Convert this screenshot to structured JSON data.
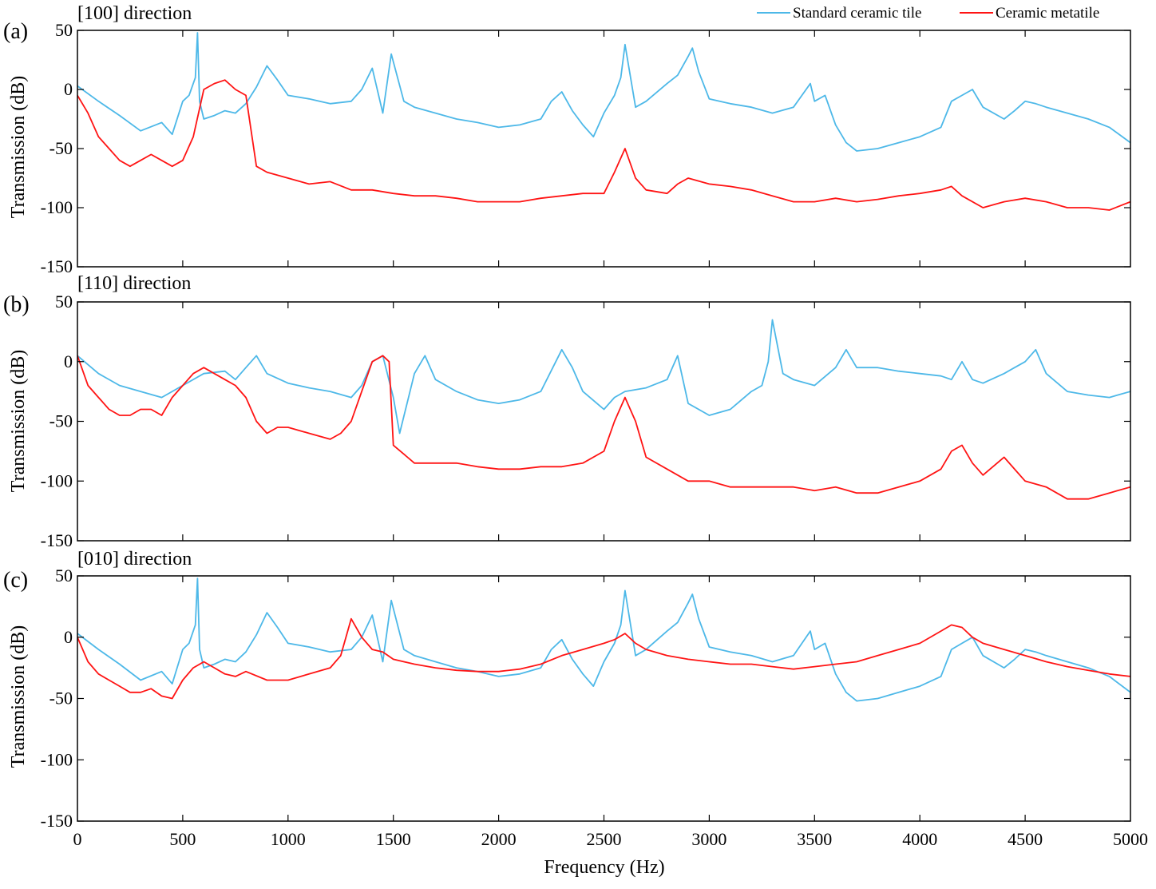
{
  "chart_data": [
    {
      "type": "line",
      "panel": "(a)",
      "title": "[100]  direction",
      "xlabel": "",
      "ylabel": "Transmission (dB)",
      "xlim": [
        0,
        5000
      ],
      "ylim": [
        -150,
        50
      ],
      "yticks": [
        "50",
        "0",
        "-50",
        "-100",
        "-150"
      ],
      "xticks": [],
      "series": [
        {
          "name": "Standard ceramic tile",
          "color": "#4db8e8",
          "x": [
            0,
            100,
            200,
            300,
            400,
            450,
            500,
            530,
            560,
            570,
            580,
            600,
            650,
            700,
            750,
            800,
            850,
            900,
            950,
            1000,
            1100,
            1200,
            1300,
            1350,
            1400,
            1450,
            1490,
            1550,
            1600,
            1700,
            1800,
            1900,
            2000,
            2100,
            2200,
            2250,
            2300,
            2350,
            2400,
            2450,
            2500,
            2550,
            2580,
            2600,
            2650,
            2700,
            2800,
            2850,
            2900,
            2920,
            2950,
            3000,
            3100,
            3200,
            3300,
            3400,
            3480,
            3500,
            3550,
            3600,
            3650,
            3700,
            3800,
            3900,
            4000,
            4100,
            4150,
            4200,
            4250,
            4300,
            4400,
            4450,
            4500,
            4550,
            4600,
            4700,
            4800,
            4900,
            5000
          ],
          "y": [
            3,
            -10,
            -22,
            -35,
            -28,
            -38,
            -10,
            -5,
            10,
            48,
            -10,
            -25,
            -22,
            -18,
            -20,
            -12,
            2,
            20,
            8,
            -5,
            -8,
            -12,
            -10,
            0,
            18,
            -20,
            30,
            -10,
            -15,
            -20,
            -25,
            -28,
            -32,
            -30,
            -25,
            -10,
            -2,
            -18,
            -30,
            -40,
            -20,
            -5,
            10,
            38,
            -15,
            -10,
            5,
            12,
            28,
            35,
            15,
            -8,
            -12,
            -15,
            -20,
            -15,
            5,
            -10,
            -5,
            -30,
            -45,
            -52,
            -50,
            -45,
            -40,
            -32,
            -10,
            -5,
            0,
            -15,
            -25,
            -18,
            -10,
            -12,
            -15,
            -20,
            -25,
            -32,
            -45
          ]
        },
        {
          "name": "Ceramic metatile",
          "color": "#ff1414",
          "x": [
            0,
            50,
            100,
            150,
            200,
            250,
            300,
            350,
            400,
            450,
            500,
            550,
            600,
            650,
            700,
            750,
            800,
            850,
            900,
            1000,
            1100,
            1200,
            1300,
            1400,
            1500,
            1600,
            1700,
            1800,
            1900,
            2000,
            2100,
            2200,
            2300,
            2400,
            2500,
            2550,
            2600,
            2650,
            2700,
            2800,
            2850,
            2900,
            3000,
            3100,
            3200,
            3300,
            3400,
            3500,
            3600,
            3700,
            3800,
            3900,
            4000,
            4100,
            4150,
            4200,
            4300,
            4400,
            4500,
            4600,
            4700,
            4800,
            4900,
            5000
          ],
          "y": [
            -5,
            -20,
            -40,
            -50,
            -60,
            -65,
            -60,
            -55,
            -60,
            -65,
            -60,
            -40,
            0,
            5,
            8,
            0,
            -5,
            -65,
            -70,
            -75,
            -80,
            -78,
            -85,
            -85,
            -88,
            -90,
            -90,
            -92,
            -95,
            -95,
            -95,
            -92,
            -90,
            -88,
            -88,
            -70,
            -50,
            -75,
            -85,
            -88,
            -80,
            -75,
            -80,
            -82,
            -85,
            -90,
            -95,
            -95,
            -92,
            -95,
            -93,
            -90,
            -88,
            -85,
            -82,
            -90,
            -100,
            -95,
            -92,
            -95,
            -100,
            -100,
            -102,
            -95
          ]
        }
      ],
      "legend": {
        "placement": "top-right",
        "entries": [
          {
            "label": "Standard ceramic tile",
            "color": "#4db8e8"
          },
          {
            "label": "Ceramic metatile",
            "color": "#ff1414"
          }
        ]
      }
    },
    {
      "type": "line",
      "panel": "(b)",
      "title": "[110]  direction",
      "xlabel": "",
      "ylabel": "Transmission (dB)",
      "xlim": [
        0,
        5000
      ],
      "ylim": [
        -150,
        50
      ],
      "yticks": [
        "50",
        "0",
        "-50",
        "-100",
        "-150"
      ],
      "xticks": [],
      "series": [
        {
          "name": "Standard ceramic tile",
          "color": "#4db8e8",
          "x": [
            0,
            100,
            200,
            300,
            400,
            500,
            600,
            700,
            750,
            800,
            850,
            900,
            1000,
            1100,
            1200,
            1300,
            1350,
            1400,
            1450,
            1500,
            1530,
            1600,
            1650,
            1700,
            1800,
            1900,
            2000,
            2100,
            2200,
            2300,
            2350,
            2400,
            2500,
            2550,
            2600,
            2700,
            2800,
            2850,
            2900,
            3000,
            3100,
            3200,
            3250,
            3280,
            3300,
            3350,
            3400,
            3500,
            3600,
            3650,
            3700,
            3800,
            3900,
            4000,
            4100,
            4150,
            4200,
            4250,
            4300,
            4400,
            4450,
            4500,
            4550,
            4600,
            4700,
            4800,
            4900,
            5000
          ],
          "y": [
            5,
            -10,
            -20,
            -25,
            -30,
            -20,
            -10,
            -8,
            -15,
            -5,
            5,
            -10,
            -18,
            -22,
            -25,
            -30,
            -20,
            0,
            5,
            -30,
            -60,
            -10,
            5,
            -15,
            -25,
            -32,
            -35,
            -32,
            -25,
            10,
            -5,
            -25,
            -40,
            -30,
            -25,
            -22,
            -15,
            5,
            -35,
            -45,
            -40,
            -25,
            -20,
            0,
            35,
            -10,
            -15,
            -20,
            -5,
            10,
            -5,
            -5,
            -8,
            -10,
            -12,
            -15,
            0,
            -15,
            -18,
            -10,
            -5,
            0,
            10,
            -10,
            -25,
            -28,
            -30,
            -25
          ]
        },
        {
          "name": "Ceramic metatile",
          "color": "#ff1414",
          "x": [
            0,
            50,
            100,
            150,
            200,
            250,
            300,
            350,
            400,
            450,
            500,
            550,
            600,
            650,
            700,
            750,
            800,
            850,
            900,
            950,
            1000,
            1100,
            1200,
            1250,
            1300,
            1350,
            1400,
            1450,
            1480,
            1500,
            1600,
            1700,
            1800,
            1900,
            2000,
            2100,
            2200,
            2300,
            2400,
            2500,
            2550,
            2600,
            2650,
            2700,
            2800,
            2850,
            2900,
            3000,
            3100,
            3200,
            3300,
            3400,
            3500,
            3600,
            3700,
            3800,
            3900,
            4000,
            4100,
            4150,
            4200,
            4250,
            4300,
            4400,
            4500,
            4600,
            4700,
            4800,
            4900,
            5000
          ],
          "y": [
            5,
            -20,
            -30,
            -40,
            -45,
            -45,
            -40,
            -40,
            -45,
            -30,
            -20,
            -10,
            -5,
            -10,
            -15,
            -20,
            -30,
            -50,
            -60,
            -55,
            -55,
            -60,
            -65,
            -60,
            -50,
            -25,
            0,
            5,
            0,
            -70,
            -85,
            -85,
            -85,
            -88,
            -90,
            -90,
            -88,
            -88,
            -85,
            -75,
            -50,
            -30,
            -50,
            -80,
            -90,
            -95,
            -100,
            -100,
            -105,
            -105,
            -105,
            -105,
            -108,
            -105,
            -110,
            -110,
            -105,
            -100,
            -90,
            -75,
            -70,
            -85,
            -95,
            -80,
            -100,
            -105,
            -115,
            -115,
            -110,
            -105
          ]
        }
      ]
    },
    {
      "type": "line",
      "panel": "(c)",
      "title": "[010]  direction",
      "xlabel": "Frequency (Hz)",
      "ylabel": "Transmission (dB)",
      "xlim": [
        0,
        5000
      ],
      "ylim": [
        -150,
        50
      ],
      "yticks": [
        "50",
        "0",
        "-50",
        "-100",
        "-150"
      ],
      "xticks": [
        "0",
        "500",
        "1000",
        "1500",
        "2000",
        "2500",
        "3000",
        "3500",
        "4000",
        "4500",
        "5000"
      ],
      "series": [
        {
          "name": "Standard ceramic tile",
          "color": "#4db8e8",
          "x": [
            0,
            100,
            200,
            300,
            400,
            450,
            500,
            530,
            560,
            570,
            580,
            600,
            650,
            700,
            750,
            800,
            850,
            900,
            950,
            1000,
            1100,
            1200,
            1300,
            1350,
            1400,
            1450,
            1490,
            1550,
            1600,
            1700,
            1800,
            1900,
            2000,
            2100,
            2200,
            2250,
            2300,
            2350,
            2400,
            2450,
            2500,
            2550,
            2580,
            2600,
            2650,
            2700,
            2800,
            2850,
            2900,
            2920,
            2950,
            3000,
            3100,
            3200,
            3300,
            3400,
            3480,
            3500,
            3550,
            3600,
            3650,
            3700,
            3800,
            3900,
            4000,
            4100,
            4150,
            4200,
            4250,
            4300,
            4400,
            4450,
            4500,
            4550,
            4600,
            4700,
            4800,
            4900,
            5000
          ],
          "y": [
            3,
            -10,
            -22,
            -35,
            -28,
            -38,
            -10,
            -5,
            10,
            48,
            -10,
            -25,
            -22,
            -18,
            -20,
            -12,
            2,
            20,
            8,
            -5,
            -8,
            -12,
            -10,
            0,
            18,
            -20,
            30,
            -10,
            -15,
            -20,
            -25,
            -28,
            -32,
            -30,
            -25,
            -10,
            -2,
            -18,
            -30,
            -40,
            -20,
            -5,
            10,
            38,
            -15,
            -10,
            5,
            12,
            28,
            35,
            15,
            -8,
            -12,
            -15,
            -20,
            -15,
            5,
            -10,
            -5,
            -30,
            -45,
            -52,
            -50,
            -45,
            -40,
            -32,
            -10,
            -5,
            0,
            -15,
            -25,
            -18,
            -10,
            -12,
            -15,
            -20,
            -25,
            -32,
            -45
          ]
        },
        {
          "name": "Ceramic metatile",
          "color": "#ff1414",
          "x": [
            0,
            50,
            100,
            150,
            200,
            250,
            300,
            350,
            400,
            450,
            500,
            550,
            600,
            650,
            700,
            750,
            800,
            900,
            1000,
            1100,
            1200,
            1250,
            1300,
            1350,
            1400,
            1450,
            1500,
            1600,
            1700,
            1800,
            1900,
            2000,
            2100,
            2200,
            2300,
            2400,
            2500,
            2550,
            2600,
            2650,
            2700,
            2800,
            2900,
            3000,
            3100,
            3200,
            3300,
            3400,
            3500,
            3600,
            3700,
            3800,
            3900,
            4000,
            4100,
            4150,
            4200,
            4250,
            4300,
            4400,
            4500,
            4600,
            4700,
            4800,
            4900,
            5000
          ],
          "y": [
            0,
            -20,
            -30,
            -35,
            -40,
            -45,
            -45,
            -42,
            -48,
            -50,
            -35,
            -25,
            -20,
            -25,
            -30,
            -32,
            -28,
            -35,
            -35,
            -30,
            -25,
            -15,
            15,
            0,
            -10,
            -12,
            -18,
            -22,
            -25,
            -27,
            -28,
            -28,
            -26,
            -22,
            -15,
            -10,
            -5,
            -2,
            3,
            -5,
            -10,
            -15,
            -18,
            -20,
            -22,
            -22,
            -24,
            -26,
            -24,
            -22,
            -20,
            -15,
            -10,
            -5,
            5,
            10,
            8,
            0,
            -5,
            -10,
            -15,
            -20,
            -24,
            -27,
            -30,
            -32
          ]
        }
      ]
    }
  ]
}
